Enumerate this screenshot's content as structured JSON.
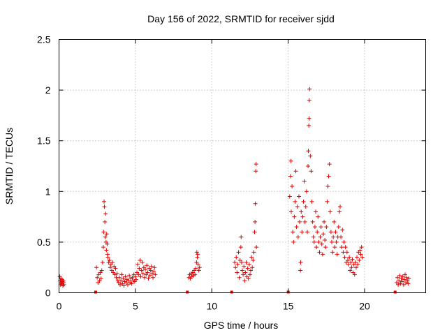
{
  "chart_data": {
    "type": "scatter",
    "title": "Day 156 of 2022, SRMTID for receiver sjdd",
    "xlabel": "GPS time / hours",
    "ylabel": "SRMTID / TECUs",
    "xlim": [
      0,
      24
    ],
    "ylim": [
      0,
      2.5
    ],
    "xticks": [
      0,
      5,
      10,
      15,
      20
    ],
    "yticks": [
      0,
      0.5,
      1,
      1.5,
      2,
      2.5
    ],
    "xtick_labels": [
      "0",
      "5",
      "10",
      "15",
      "20"
    ],
    "ytick_labels": [
      "0",
      "0.5",
      "1",
      "1.5",
      "2",
      "2.5"
    ],
    "grid": true,
    "marker": "+",
    "color": "#e00000",
    "zero_markers_x": [
      2.4,
      8.4,
      11.3,
      15.0,
      22.0
    ],
    "series": [
      {
        "name": "SRMTID",
        "points": [
          [
            0.05,
            0.16
          ],
          [
            0.08,
            0.12
          ],
          [
            0.1,
            0.08
          ],
          [
            0.12,
            0.14
          ],
          [
            0.15,
            0.1
          ],
          [
            0.18,
            0.09
          ],
          [
            0.2,
            0.13
          ],
          [
            0.22,
            0.11
          ],
          [
            0.25,
            0.07
          ],
          [
            0.28,
            0.12
          ],
          [
            0.3,
            0.1
          ],
          [
            0.32,
            0.08
          ],
          [
            2.45,
            0.25
          ],
          [
            2.5,
            0.15
          ],
          [
            2.55,
            0.1
          ],
          [
            2.6,
            0.18
          ],
          [
            2.65,
            0.12
          ],
          [
            2.7,
            0.2
          ],
          [
            2.75,
            0.14
          ],
          [
            2.8,
            0.22
          ],
          [
            2.85,
            0.3
          ],
          [
            2.9,
            0.45
          ],
          [
            2.92,
            0.6
          ],
          [
            2.95,
            0.9
          ],
          [
            2.97,
            0.85
          ],
          [
            3.0,
            0.7
          ],
          [
            3.02,
            0.55
          ],
          [
            3.05,
            0.78
          ],
          [
            3.08,
            0.5
          ],
          [
            3.1,
            0.42
          ],
          [
            3.12,
            0.58
          ],
          [
            3.15,
            0.48
          ],
          [
            3.18,
            0.38
          ],
          [
            3.2,
            0.35
          ],
          [
            3.25,
            0.3
          ],
          [
            3.3,
            0.32
          ],
          [
            3.35,
            0.25
          ],
          [
            3.4,
            0.28
          ],
          [
            3.45,
            0.22
          ],
          [
            3.5,
            0.3
          ],
          [
            3.55,
            0.2
          ],
          [
            3.6,
            0.26
          ],
          [
            3.65,
            0.18
          ],
          [
            3.7,
            0.24
          ],
          [
            3.75,
            0.15
          ],
          [
            3.8,
            0.19
          ],
          [
            3.85,
            0.12
          ],
          [
            3.9,
            0.1
          ],
          [
            3.95,
            0.15
          ],
          [
            4.0,
            0.08
          ],
          [
            4.05,
            0.12
          ],
          [
            4.1,
            0.18
          ],
          [
            4.15,
            0.09
          ],
          [
            4.2,
            0.14
          ],
          [
            4.25,
            0.07
          ],
          [
            4.3,
            0.11
          ],
          [
            4.35,
            0.16
          ],
          [
            4.4,
            0.1
          ],
          [
            4.45,
            0.13
          ],
          [
            4.5,
            0.08
          ],
          [
            4.55,
            0.12
          ],
          [
            4.6,
            0.17
          ],
          [
            4.65,
            0.1
          ],
          [
            4.7,
            0.14
          ],
          [
            4.75,
            0.09
          ],
          [
            4.8,
            0.15
          ],
          [
            4.85,
            0.12
          ],
          [
            4.9,
            0.18
          ],
          [
            4.95,
            0.11
          ],
          [
            5.0,
            0.16
          ],
          [
            5.05,
            0.13
          ],
          [
            5.1,
            0.2
          ],
          [
            5.15,
            0.28
          ],
          [
            5.2,
            0.18
          ],
          [
            5.25,
            0.24
          ],
          [
            5.3,
            0.32
          ],
          [
            5.35,
            0.16
          ],
          [
            5.4,
            0.22
          ],
          [
            5.45,
            0.3
          ],
          [
            5.5,
            0.19
          ],
          [
            5.55,
            0.25
          ],
          [
            5.6,
            0.15
          ],
          [
            5.65,
            0.23
          ],
          [
            5.7,
            0.18
          ],
          [
            5.75,
            0.27
          ],
          [
            5.8,
            0.2
          ],
          [
            5.85,
            0.14
          ],
          [
            5.9,
            0.24
          ],
          [
            5.95,
            0.17
          ],
          [
            6.0,
            0.22
          ],
          [
            6.05,
            0.26
          ],
          [
            6.1,
            0.19
          ],
          [
            6.15,
            0.15
          ],
          [
            6.2,
            0.21
          ],
          [
            6.25,
            0.25
          ],
          [
            6.3,
            0.18
          ],
          [
            8.5,
            0.15
          ],
          [
            8.55,
            0.18
          ],
          [
            8.6,
            0.14
          ],
          [
            8.65,
            0.19
          ],
          [
            8.7,
            0.16
          ],
          [
            8.75,
            0.2
          ],
          [
            8.8,
            0.17
          ],
          [
            8.85,
            0.22
          ],
          [
            8.9,
            0.18
          ],
          [
            8.95,
            0.24
          ],
          [
            9.0,
            0.3
          ],
          [
            9.02,
            0.4
          ],
          [
            9.05,
            0.35
          ],
          [
            9.08,
            0.38
          ],
          [
            9.1,
            0.28
          ],
          [
            9.15,
            0.22
          ],
          [
            9.2,
            0.25
          ],
          [
            11.5,
            0.3
          ],
          [
            11.55,
            0.25
          ],
          [
            11.6,
            0.35
          ],
          [
            11.65,
            0.2
          ],
          [
            11.7,
            0.28
          ],
          [
            11.75,
            0.4
          ],
          [
            11.8,
            0.15
          ],
          [
            11.85,
            0.32
          ],
          [
            11.9,
            0.45
          ],
          [
            11.92,
            0.55
          ],
          [
            11.95,
            0.3
          ],
          [
            12.0,
            0.22
          ],
          [
            12.05,
            0.18
          ],
          [
            12.1,
            0.26
          ],
          [
            12.15,
            0.12
          ],
          [
            12.2,
            0.2
          ],
          [
            12.25,
            0.3
          ],
          [
            12.3,
            0.16
          ],
          [
            12.35,
            0.24
          ],
          [
            12.4,
            0.14
          ],
          [
            12.45,
            0.28
          ],
          [
            12.5,
            0.18
          ],
          [
            12.55,
            0.22
          ],
          [
            12.6,
            0.35
          ],
          [
            12.65,
            0.25
          ],
          [
            12.7,
            0.32
          ],
          [
            12.75,
            0.4
          ],
          [
            12.8,
            0.6
          ],
          [
            12.83,
            0.7
          ],
          [
            12.85,
            0.88
          ],
          [
            12.88,
            1.2
          ],
          [
            12.9,
            1.27
          ],
          [
            12.92,
            0.45
          ],
          [
            15.1,
            0.95
          ],
          [
            15.15,
            1.15
          ],
          [
            15.18,
            1.3
          ],
          [
            15.2,
            0.8
          ],
          [
            15.25,
            1.05
          ],
          [
            15.3,
            0.6
          ],
          [
            15.35,
            0.5
          ],
          [
            15.4,
            0.75
          ],
          [
            15.45,
            0.9
          ],
          [
            15.5,
            1.2
          ],
          [
            15.55,
            0.65
          ],
          [
            15.6,
            0.85
          ],
          [
            15.65,
            0.55
          ],
          [
            15.7,
            0.95
          ],
          [
            15.75,
            0.7
          ],
          [
            15.8,
            0.22
          ],
          [
            15.82,
            0.3
          ],
          [
            15.85,
            0.8
          ],
          [
            15.9,
            0.6
          ],
          [
            15.95,
            0.75
          ],
          [
            16.0,
            0.9
          ],
          [
            16.05,
            1.1
          ],
          [
            16.1,
            0.7
          ],
          [
            16.15,
            0.85
          ],
          [
            16.2,
            1.0
          ],
          [
            16.25,
            0.6
          ],
          [
            16.3,
            1.25
          ],
          [
            16.32,
            1.4
          ],
          [
            16.35,
            1.65
          ],
          [
            16.37,
            1.72
          ],
          [
            16.38,
            1.9
          ],
          [
            16.4,
            2.01
          ],
          [
            16.45,
            1.35
          ],
          [
            16.5,
            1.2
          ],
          [
            16.55,
            0.9
          ],
          [
            16.6,
            0.7
          ],
          [
            16.65,
            0.55
          ],
          [
            16.7,
            0.5
          ],
          [
            16.75,
            0.65
          ],
          [
            16.8,
            0.8
          ],
          [
            16.85,
            0.45
          ],
          [
            16.9,
            0.6
          ],
          [
            16.95,
            0.75
          ],
          [
            17.0,
            0.5
          ],
          [
            17.05,
            0.4
          ],
          [
            17.1,
            0.55
          ],
          [
            17.15,
            0.65
          ],
          [
            17.2,
            0.48
          ],
          [
            17.25,
            0.38
          ],
          [
            17.3,
            0.58
          ],
          [
            17.35,
            0.7
          ],
          [
            17.4,
            0.52
          ],
          [
            17.45,
            0.45
          ],
          [
            17.5,
            0.65
          ],
          [
            17.55,
            0.9
          ],
          [
            17.6,
            1.05
          ],
          [
            17.65,
            1.15
          ],
          [
            17.7,
            1.27
          ],
          [
            17.75,
            0.8
          ],
          [
            17.8,
            0.6
          ],
          [
            17.85,
            0.5
          ],
          [
            17.9,
            0.4
          ],
          [
            17.95,
            0.55
          ],
          [
            18.0,
            0.7
          ],
          [
            18.05,
            0.45
          ],
          [
            18.1,
            0.6
          ],
          [
            18.15,
            0.5
          ],
          [
            18.2,
            0.38
          ],
          [
            18.25,
            0.55
          ],
          [
            18.3,
            0.65
          ],
          [
            18.35,
            0.8
          ],
          [
            18.4,
            0.85
          ],
          [
            18.45,
            0.55
          ],
          [
            18.5,
            0.45
          ],
          [
            18.55,
            0.62
          ],
          [
            18.6,
            0.4
          ],
          [
            18.65,
            0.5
          ],
          [
            18.7,
            0.35
          ],
          [
            18.75,
            0.45
          ],
          [
            18.8,
            0.3
          ],
          [
            18.85,
            0.4
          ],
          [
            18.9,
            0.32
          ],
          [
            18.95,
            0.28
          ],
          [
            19.0,
            0.35
          ],
          [
            19.05,
            0.22
          ],
          [
            19.1,
            0.3
          ],
          [
            19.15,
            0.25
          ],
          [
            19.2,
            0.33
          ],
          [
            19.25,
            0.2
          ],
          [
            19.3,
            0.28
          ],
          [
            19.35,
            0.18
          ],
          [
            19.4,
            0.3
          ],
          [
            19.45,
            0.25
          ],
          [
            19.5,
            0.35
          ],
          [
            19.55,
            0.28
          ],
          [
            19.6,
            0.4
          ],
          [
            19.65,
            0.32
          ],
          [
            19.7,
            0.42
          ],
          [
            19.75,
            0.38
          ],
          [
            19.8,
            0.45
          ],
          [
            19.85,
            0.35
          ],
          [
            22.1,
            0.1
          ],
          [
            22.15,
            0.15
          ],
          [
            22.2,
            0.08
          ],
          [
            22.25,
            0.12
          ],
          [
            22.3,
            0.17
          ],
          [
            22.35,
            0.09
          ],
          [
            22.4,
            0.14
          ],
          [
            22.45,
            0.11
          ],
          [
            22.5,
            0.16
          ],
          [
            22.55,
            0.08
          ],
          [
            22.6,
            0.13
          ],
          [
            22.65,
            0.18
          ],
          [
            22.7,
            0.1
          ],
          [
            22.75,
            0.15
          ],
          [
            22.8,
            0.12
          ],
          [
            22.85,
            0.09
          ],
          [
            22.9,
            0.14
          ]
        ]
      }
    ]
  }
}
